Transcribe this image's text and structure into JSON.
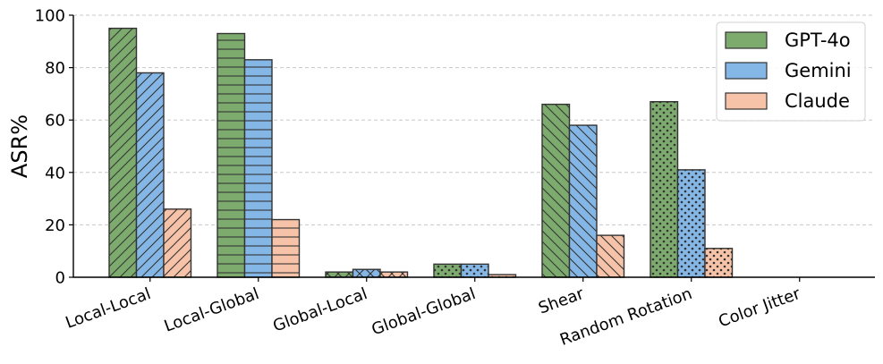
{
  "chart_data": {
    "type": "bar",
    "title": "",
    "xlabel": "",
    "ylabel": "ASR%",
    "ylim": [
      0,
      100
    ],
    "yticks": [
      0,
      20,
      40,
      60,
      80,
      100
    ],
    "grid": "y-dashed",
    "legend_position": "top-right",
    "categories": [
      "Local-Local",
      "Local-Global",
      "Global-Local",
      "Global-Global",
      "Shear",
      "Random Rotation",
      "Color Jitter"
    ],
    "category_patterns": [
      "diagonal",
      "horizontal",
      "cross",
      "dots",
      "back-diagonal",
      "dots",
      "none"
    ],
    "series": [
      {
        "name": "GPT-4o",
        "color": "#7dab6e",
        "values": [
          95,
          93,
          2,
          5,
          66,
          67,
          0
        ]
      },
      {
        "name": "Gemini",
        "color": "#84b6e6",
        "values": [
          78,
          83,
          3,
          5,
          58,
          41,
          0
        ]
      },
      {
        "name": "Claude",
        "color": "#f7c3a8",
        "values": [
          26,
          22,
          2,
          1,
          16,
          11,
          0
        ]
      }
    ]
  }
}
